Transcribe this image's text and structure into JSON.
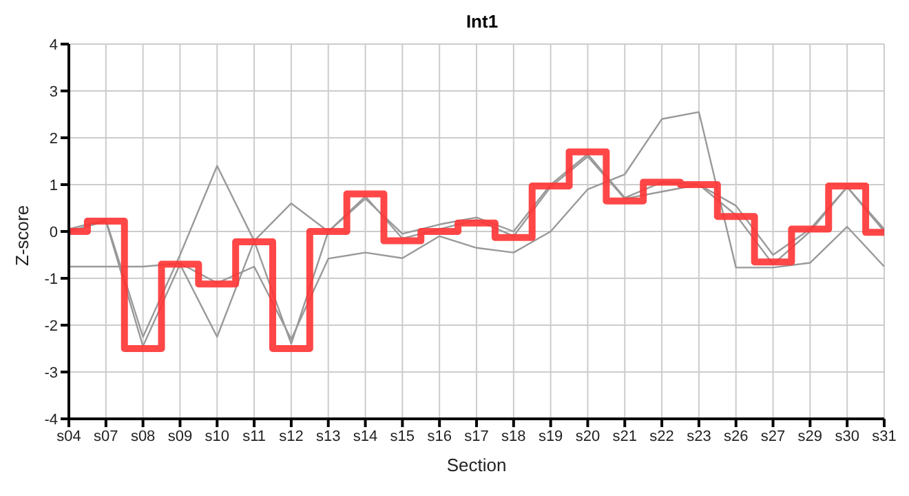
{
  "chart_data": {
    "type": "line",
    "title": "Int1",
    "xlabel": "Section",
    "ylabel": "Z-score",
    "categories": [
      "s04",
      "s07",
      "s08",
      "s09",
      "s10",
      "s11",
      "s12",
      "s13",
      "s14",
      "s15",
      "s16",
      "s17",
      "s18",
      "s19",
      "s20",
      "s21",
      "s22",
      "s23",
      "s26",
      "s27",
      "s29",
      "s30",
      "s31"
    ],
    "series": [
      {
        "type": "line",
        "color": "#999999",
        "values": [
          -0.75,
          -0.75,
          -0.75,
          -0.68,
          -1.1,
          -0.75,
          -2.3,
          -0.58,
          -0.45,
          -0.57,
          -0.1,
          -0.35,
          -0.45,
          0.0,
          0.9,
          1.22,
          2.4,
          2.55,
          -0.77,
          -0.77,
          -0.67,
          0.1,
          -0.75
        ]
      },
      {
        "type": "line",
        "color": "#999999",
        "values": [
          0.05,
          0.25,
          -2.25,
          -0.5,
          1.4,
          -0.2,
          -2.4,
          0.0,
          0.7,
          -0.05,
          0.15,
          0.3,
          0.0,
          1.0,
          1.65,
          0.72,
          1.05,
          1.0,
          0.55,
          -0.5,
          0.05,
          0.95,
          0.05
        ]
      },
      {
        "type": "line",
        "color": "#999999",
        "values": [
          0.0,
          0.22,
          -2.45,
          -0.7,
          -2.25,
          -0.2,
          0.6,
          0.0,
          0.75,
          -0.15,
          0.05,
          0.25,
          -0.1,
          0.95,
          1.6,
          0.7,
          0.85,
          1.0,
          0.35,
          -0.7,
          0.0,
          0.95,
          0.0
        ]
      },
      {
        "type": "step",
        "color": "#ff3333",
        "values": [
          0.0,
          0.22,
          -2.5,
          -0.7,
          -1.12,
          -0.22,
          -2.5,
          0.0,
          0.8,
          -0.2,
          0.0,
          0.18,
          -0.13,
          0.97,
          1.7,
          0.65,
          1.05,
          1.0,
          0.32,
          -0.65,
          0.05,
          0.97,
          -0.02
        ]
      }
    ],
    "ylim": [
      -4,
      4
    ],
    "yticks": [
      -4,
      -3,
      -2,
      -1,
      0,
      1,
      2,
      3,
      4
    ],
    "grid": true,
    "legend": false,
    "marker": "none",
    "line_style": "solid"
  }
}
